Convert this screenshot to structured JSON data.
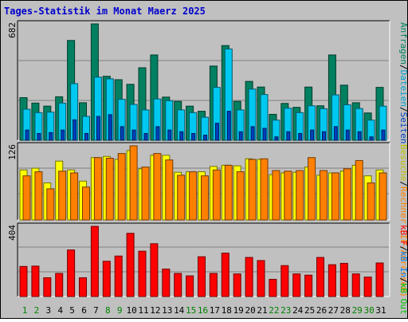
{
  "title": "Tages-Statistik im Monat Maerz 2025",
  "colors": {
    "background": "#c0c0c0",
    "panel": "#c0c0c0",
    "title": "#0000cc",
    "hits": "#008060",
    "files": "#00c8f0",
    "pages": "#0040c0",
    "visits": "#ffff00",
    "sites": "#ff8000",
    "kbf": "#ff0000",
    "kbin": "#0080ff",
    "kbout": "#00c000",
    "weekday": "#000000",
    "weekend": "#008000"
  },
  "right_legend": {
    "top": [
      {
        "text": "Anfragen",
        "color": "#008060"
      },
      {
        "text": "/",
        "color": "#000000"
      },
      {
        "text": "Dateien",
        "color": "#00a0d0"
      },
      {
        "text": "/",
        "color": "#000000"
      },
      {
        "text": "Seiten",
        "color": "#0040c0"
      }
    ],
    "mid": [
      {
        "text": "Besuche",
        "color": "#c0c000"
      },
      {
        "text": "/",
        "color": "#000000"
      },
      {
        "text": "Rechner (IP-Adressen)",
        "color": "#ff8000"
      }
    ],
    "bot": [
      {
        "text": "kB F",
        "color": "#ff0000"
      },
      {
        "text": "/",
        "color": "#000000"
      },
      {
        "text": "kB In",
        "color": "#0080ff"
      },
      {
        "text": "/",
        "color": "#000000"
      },
      {
        "text": "kB Out",
        "color": "#00c000"
      }
    ]
  },
  "chart_data": [
    {
      "type": "bar",
      "panel": "top",
      "ymax_label": "682",
      "ylim": [
        0,
        682
      ],
      "categories": [
        "1",
        "2",
        "3",
        "4",
        "5",
        "6",
        "7",
        "8",
        "9",
        "10",
        "11",
        "12",
        "13",
        "14",
        "15",
        "16",
        "17",
        "18",
        "19",
        "20",
        "21",
        "22",
        "23",
        "24",
        "25",
        "26",
        "27",
        "28",
        "29",
        "30",
        "31"
      ],
      "series": [
        {
          "name": "Anfragen",
          "values": [
            250,
            218,
            200,
            255,
            585,
            220,
            682,
            375,
            355,
            328,
            425,
            500,
            253,
            228,
            200,
            170,
            435,
            555,
            228,
            345,
            312,
            152,
            216,
            193,
            312,
            202,
            500,
            323,
            220,
            160,
            310
          ]
        },
        {
          "name": "Dateien",
          "values": [
            182,
            162,
            165,
            218,
            332,
            140,
            370,
            360,
            240,
            210,
            178,
            242,
            232,
            178,
            162,
            135,
            310,
            535,
            178,
            300,
            268,
            118,
            188,
            162,
            202,
            185,
            266,
            208,
            186,
            118,
            200
          ]
        },
        {
          "name": "Seiten",
          "values": [
            60,
            40,
            45,
            60,
            120,
            40,
            140,
            150,
            80,
            60,
            40,
            80,
            60,
            50,
            40,
            30,
            100,
            170,
            50,
            80,
            70,
            20,
            50,
            40,
            60,
            50,
            80,
            60,
            50,
            20,
            60
          ]
        }
      ]
    },
    {
      "type": "bar",
      "panel": "middle",
      "ymax_label": "126",
      "ylim": [
        0,
        126
      ],
      "categories": [
        "1",
        "2",
        "3",
        "4",
        "5",
        "6",
        "7",
        "8",
        "9",
        "10",
        "11",
        "12",
        "13",
        "14",
        "15",
        "16",
        "17",
        "18",
        "19",
        "20",
        "21",
        "22",
        "23",
        "24",
        "25",
        "26",
        "27",
        "28",
        "29",
        "30",
        "31"
      ],
      "series": [
        {
          "name": "Besuche",
          "values": [
            85,
            88,
            63,
            100,
            85,
            66,
            106,
            108,
            103,
            118,
            87,
            110,
            110,
            81,
            82,
            82,
            91,
            93,
            92,
            104,
            103,
            77,
            80,
            81,
            90,
            76,
            80,
            83,
            93,
            75,
            85
          ]
        },
        {
          "name": "Rechner (IP-Adressen)",
          "values": [
            75,
            82,
            53,
            83,
            80,
            56,
            106,
            105,
            113,
            126,
            90,
            113,
            102,
            76,
            82,
            75,
            85,
            93,
            82,
            103,
            104,
            84,
            83,
            84,
            106,
            84,
            80,
            87,
            101,
            63,
            80
          ]
        }
      ]
    },
    {
      "type": "bar",
      "panel": "bottom",
      "ymax_label": "404",
      "ylim": [
        0,
        404
      ],
      "categories": [
        "1",
        "2",
        "3",
        "4",
        "5",
        "6",
        "7",
        "8",
        "9",
        "10",
        "11",
        "12",
        "13",
        "14",
        "15",
        "16",
        "17",
        "18",
        "19",
        "20",
        "21",
        "22",
        "23",
        "24",
        "25",
        "26",
        "27",
        "28",
        "29",
        "30",
        "31"
      ],
      "series": [
        {
          "name": "kB F",
          "values": [
            173,
            175,
            108,
            133,
            268,
            108,
            404,
            203,
            233,
            364,
            261,
            304,
            158,
            133,
            119,
            229,
            133,
            250,
            130,
            225,
            207,
            99,
            178,
            130,
            123,
            225,
            183,
            191,
            130,
            112,
            193
          ]
        }
      ]
    }
  ]
}
